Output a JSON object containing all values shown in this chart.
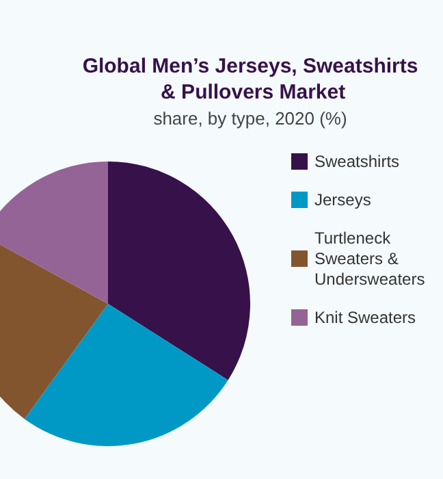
{
  "chart_data": {
    "type": "pie",
    "title": "Global Men’s Jerseys, Sweatshirts & Pullovers Market",
    "subtitle": "share, by type, 2020 (%)",
    "categories": [
      "Sweatshirts",
      "Jerseys",
      "Turtleneck Sweaters & Undersweaters",
      "Knit Sweaters"
    ],
    "values": [
      34,
      26,
      23,
      17
    ],
    "colors": [
      "#36114a",
      "#0099c6",
      "#83552e",
      "#956496"
    ],
    "legend": "right"
  }
}
